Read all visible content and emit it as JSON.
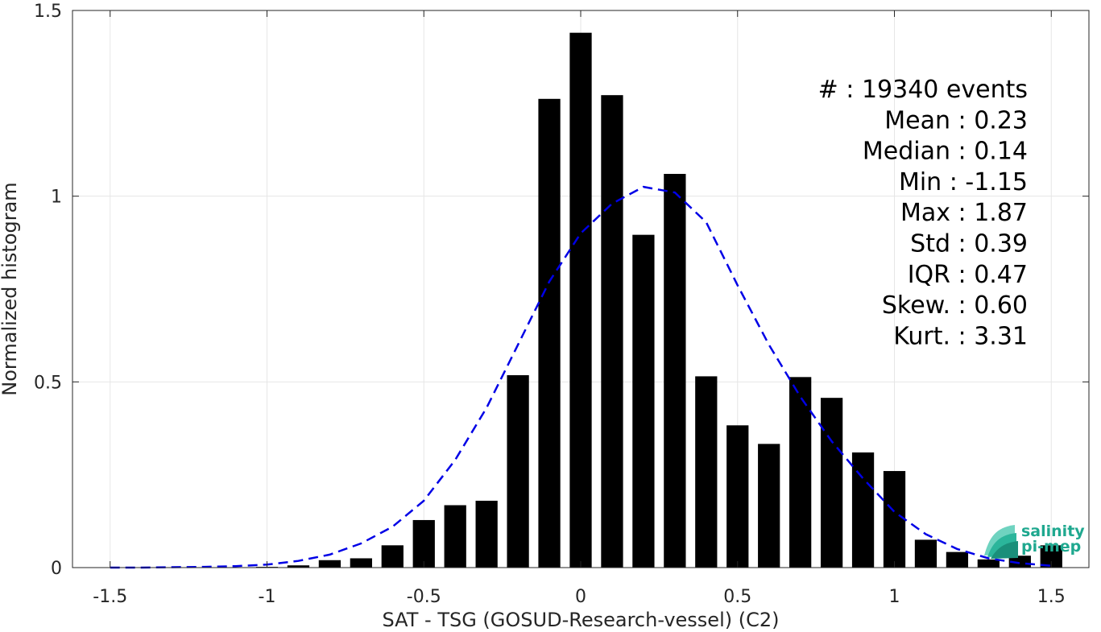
{
  "chart_data": {
    "type": "bar",
    "xlabel": "SAT - TSG (GOSUD-Research-vessel) (C2)",
    "ylabel": "Normalized histogram",
    "xlim": [
      -1.62,
      1.62
    ],
    "ylim": [
      0,
      1.5
    ],
    "xticks": [
      -1.5,
      -1,
      -0.5,
      0,
      0.5,
      1,
      1.5
    ],
    "xtick_labels": [
      "-1.5",
      "-1",
      "-0.5",
      "0",
      "0.5",
      "1",
      "1.5"
    ],
    "yticks": [
      0,
      0.5,
      1,
      1.5
    ],
    "ytick_labels": [
      "0",
      "0.5",
      "1",
      "1.5"
    ],
    "grid": true,
    "bar_color": "#000000",
    "bar_width": 0.07,
    "bars": {
      "x": [
        -1.0,
        -0.9,
        -0.8,
        -0.7,
        -0.6,
        -0.5,
        -0.4,
        -0.3,
        -0.2,
        -0.1,
        0.0,
        0.1,
        0.2,
        0.3,
        0.4,
        0.5,
        0.6,
        0.7,
        0.8,
        0.9,
        1.0,
        1.1,
        1.2,
        1.3,
        1.4,
        1.5
      ],
      "values": [
        0.002,
        0.006,
        0.02,
        0.025,
        0.06,
        0.128,
        0.168,
        0.18,
        0.518,
        1.262,
        1.44,
        1.272,
        0.896,
        1.06,
        0.515,
        0.383,
        0.333,
        0.513,
        0.457,
        0.31,
        0.26,
        0.075,
        0.042,
        0.022,
        0.032,
        0.06
      ]
    },
    "fit_curve": {
      "style": "dashed",
      "color": "#0000e6",
      "x": [
        -1.5,
        -1.4,
        -1.3,
        -1.2,
        -1.1,
        -1.0,
        -0.9,
        -0.8,
        -0.7,
        -0.6,
        -0.5,
        -0.4,
        -0.3,
        -0.2,
        -0.1,
        0.0,
        0.1,
        0.2,
        0.3,
        0.4,
        0.5,
        0.6,
        0.7,
        0.8,
        0.9,
        1.0,
        1.1,
        1.2,
        1.3,
        1.4,
        1.5
      ],
      "y": [
        0.0,
        0.0,
        0.001,
        0.002,
        0.004,
        0.008,
        0.018,
        0.035,
        0.065,
        0.11,
        0.18,
        0.29,
        0.43,
        0.6,
        0.77,
        0.9,
        0.98,
        1.025,
        1.01,
        0.93,
        0.76,
        0.6,
        0.46,
        0.34,
        0.24,
        0.15,
        0.09,
        0.05,
        0.025,
        0.012,
        0.005
      ]
    },
    "annotations": [
      {
        "label": "#",
        "sep": ":",
        "value": "19340 events"
      },
      {
        "label": "Mean",
        "sep": ":",
        "value": "0.23"
      },
      {
        "label": "Median",
        "sep": ":",
        "value": "0.14"
      },
      {
        "label": "Min",
        "sep": ":",
        "value": "-1.15"
      },
      {
        "label": "Max",
        "sep": ":",
        "value": "1.87"
      },
      {
        "label": "Std",
        "sep": ":",
        "value": "0.39"
      },
      {
        "label": "IQR",
        "sep": ":",
        "value": "0.47"
      },
      {
        "label": "Skew.",
        "sep": ":",
        "value": "0.60"
      },
      {
        "label": "Kurt.",
        "sep": ":",
        "value": "3.31"
      }
    ]
  },
  "logo": {
    "line1": "salinity",
    "line2": "pi-mep",
    "color": "#1fa88f"
  }
}
